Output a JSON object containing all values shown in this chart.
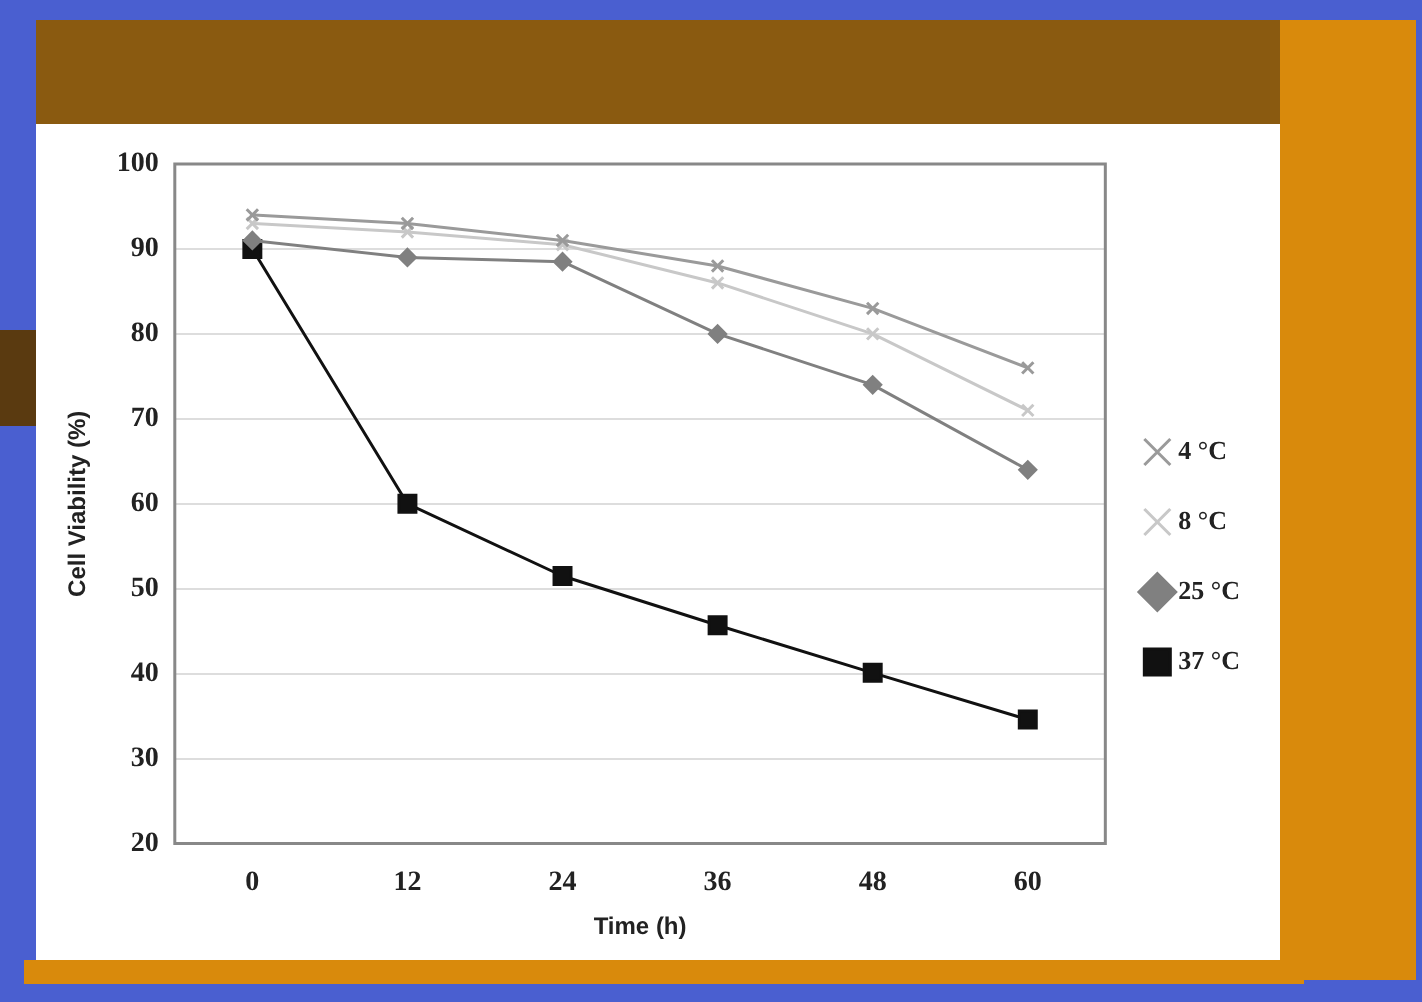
{
  "chart_data": {
    "type": "line",
    "xlabel": "Time (h)",
    "ylabel": "Cell Viability (%)",
    "categories": [
      "0",
      "12",
      "24",
      "36",
      "48",
      "60"
    ],
    "series": [
      {
        "name": "4 °C",
        "color": "#9a9a9a",
        "marker": "cross",
        "values": [
          94,
          93,
          91,
          88,
          83,
          76
        ]
      },
      {
        "name": "8 °C",
        "color": "#c8c8c8",
        "marker": "cross",
        "values": [
          93,
          92,
          90.5,
          86,
          80,
          71
        ]
      },
      {
        "name": "25 °C",
        "color": "#808080",
        "marker": "diamond",
        "values": [
          91,
          89,
          88.5,
          80,
          74,
          64
        ]
      },
      {
        "name": "37 °C",
        "color": "#111111",
        "marker": "square",
        "values": [
          90,
          60,
          51.5,
          45.7,
          40.1,
          34.6
        ]
      }
    ],
    "ylim": [
      20,
      100
    ],
    "yticks": [
      20,
      30,
      40,
      50,
      60,
      70,
      80,
      90,
      100
    ],
    "grid": "y",
    "legend": "right",
    "line_style": "solid"
  }
}
